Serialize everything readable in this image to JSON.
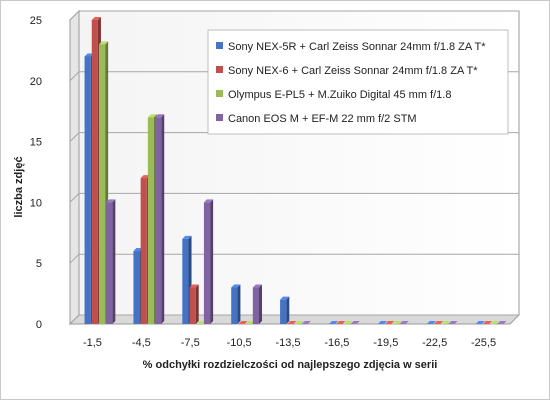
{
  "chart_data": {
    "type": "bar",
    "title": "",
    "xlabel": "% odchyłki  rozdzielczości  od najlepszego  zdjęcia  w serii",
    "ylabel": "liczba zdjęć",
    "ylim": [
      0,
      25
    ],
    "yticks": [
      0,
      5,
      10,
      15,
      20,
      25
    ],
    "grid": true,
    "legend_position": "top-right",
    "categories": [
      "-1,5",
      "-4,5",
      "-7,5",
      "-10,5",
      "-13,5",
      "-16,5",
      "-19,5",
      "-22,5",
      "-25,5"
    ],
    "series": [
      {
        "name": "Sony NEX-5R + Carl Zeiss Sonnar 24mm f/1.8 ZA T*",
        "color": "#4472C4",
        "values": [
          22,
          6,
          7,
          3,
          2,
          0,
          0,
          0,
          0
        ]
      },
      {
        "name": "Sony NEX-6 + Carl Zeiss Sonnar  24mm f/1.8 ZA T*",
        "color": "#C0504D",
        "values": [
          25,
          12,
          3,
          0,
          0,
          0,
          0,
          0,
          0
        ]
      },
      {
        "name": "Olympus E-PL5 +  M.Zuiko  Digital 45 mm f/1.8",
        "color": "#9BBB59",
        "values": [
          23,
          17,
          0,
          0,
          0,
          0,
          0,
          0,
          0
        ]
      },
      {
        "name": "Canon EOS M + EF-M 22 mm f/2 STM",
        "color": "#8064A2",
        "values": [
          10,
          17,
          10,
          3,
          0,
          0,
          0,
          0,
          0
        ]
      }
    ]
  }
}
